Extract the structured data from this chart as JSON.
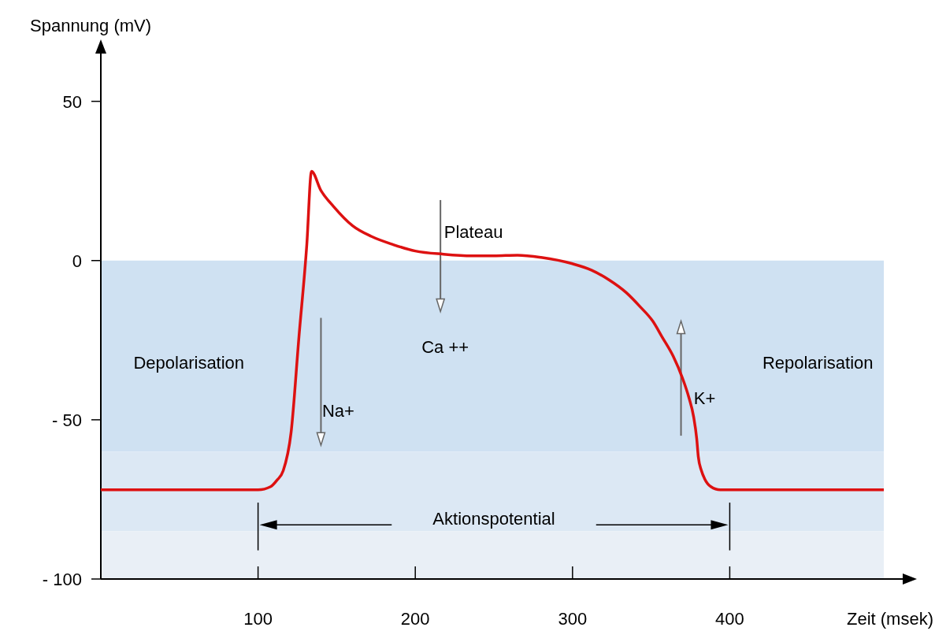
{
  "chart_data": {
    "type": "line",
    "ylabel": "Spannung (mV)",
    "xlabel": "Zeit (msek)",
    "xlim": [
      0,
      510
    ],
    "ylim": [
      -100,
      65
    ],
    "xticks": [
      100,
      200,
      300,
      400
    ],
    "yticks": [
      50,
      0,
      {
        "value": -50,
        "label": "- 50"
      },
      {
        "value": -100,
        "label": "- 100"
      }
    ],
    "grid": false,
    "line_style": "solid",
    "series": [
      {
        "color": "#dd1111",
        "x": [
          0,
          100,
          108,
          112,
          116,
          121,
          126,
          131,
          134,
          140,
          148,
          160,
          172,
          186,
          200,
          218,
          236,
          250,
          265,
          280,
          300,
          312,
          323,
          334,
          343,
          351,
          357,
          364,
          370,
          374,
          377,
          379,
          380,
          382,
          384,
          388,
          394,
          420,
          460,
          498
        ],
        "values": [
          -72,
          -72,
          -71,
          -69,
          -66,
          -54,
          -24,
          5,
          28,
          22,
          17,
          11,
          7.6,
          5,
          3,
          2,
          1.5,
          1.5,
          1.7,
          1,
          -1,
          -3,
          -6,
          -10,
          -14.5,
          -19,
          -24,
          -30,
          -37,
          -43,
          -49,
          -56,
          -61.6,
          -66,
          -68.5,
          -71,
          -72,
          -72,
          -72,
          -72
        ]
      }
    ],
    "bands": [
      {
        "axis": "y",
        "from": -60,
        "to": 0,
        "color": "#cfe1f2"
      },
      {
        "axis": "y",
        "from": -85,
        "to": -60,
        "color": "#dce8f4"
      },
      {
        "axis": "y",
        "from": -100,
        "to": -85,
        "color": "#e9eff6"
      }
    ],
    "annotations": [
      "Depolarisation",
      "Repolarisation",
      "Plateau",
      "Ca ++",
      "Na+",
      "K+",
      "Aktionspotential"
    ]
  }
}
